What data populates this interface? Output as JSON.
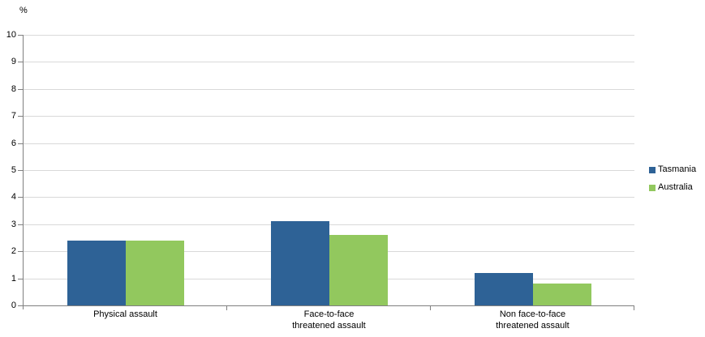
{
  "chart_data": {
    "type": "bar",
    "title": "",
    "ylabel": "%",
    "xlabel": "",
    "categories": [
      "Physical assault",
      "Face-to-face threatened assault",
      "Non face-to-face threatened assault"
    ],
    "category_label_lines": [
      [
        "Physical assault"
      ],
      [
        "Face-to-face",
        "threatened assault"
      ],
      [
        "Non face-to-face",
        "threatened assault"
      ]
    ],
    "series": [
      {
        "name": "Tasmania",
        "color": "#2E6296",
        "values": [
          2.4,
          3.1,
          1.2
        ]
      },
      {
        "name": "Australia",
        "color": "#92C85E",
        "values": [
          2.4,
          2.6,
          0.8
        ]
      }
    ],
    "ylim": [
      0,
      10
    ],
    "ytick_step": 1,
    "ytick_labels": [
      "0",
      "1",
      "2",
      "3",
      "4",
      "5",
      "6",
      "7",
      "8",
      "9",
      "10"
    ],
    "grid": true,
    "legend_position": "right",
    "colors": {
      "grid": "#D9D9D9",
      "axis": "#808080",
      "text": "#000000"
    }
  }
}
